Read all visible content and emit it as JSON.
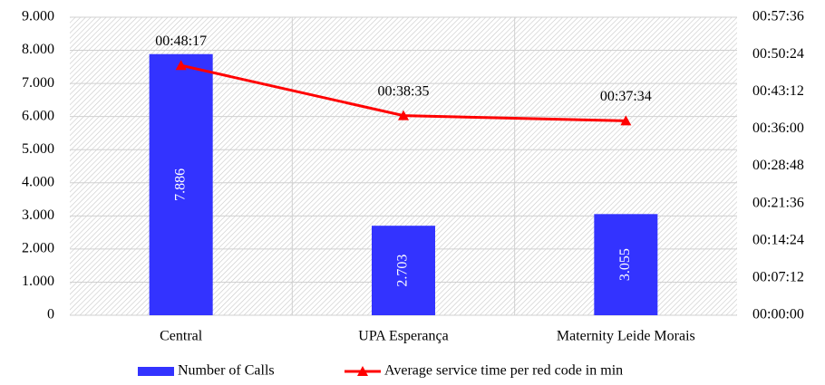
{
  "chart_data": {
    "type": "bar_line",
    "categories": [
      "Central",
      "UPA Esperança",
      "Maternity Leide Morais"
    ],
    "series": [
      {
        "name": "Number of Calls",
        "type": "bar",
        "color": "#3333ff",
        "values": [
          7886,
          2703,
          3055
        ],
        "value_labels": [
          "7.886",
          "2.703",
          "3.055"
        ]
      },
      {
        "name": "Average service time per red code in min",
        "type": "line",
        "axis": "y2",
        "color": "#ff0000",
        "marker": "triangle",
        "values": [
          2897,
          2315,
          2254
        ],
        "value_labels": [
          "00:48:17",
          "00:38:35",
          "00:37:34"
        ]
      }
    ],
    "ylim": [
      0,
      9000
    ],
    "yticks": [
      0,
      {
        "value": 1000,
        "label": "1.000"
      },
      {
        "value": 2000,
        "label": "2.000"
      },
      {
        "value": 3000,
        "label": "3.000"
      },
      {
        "value": 4000,
        "label": "4.000"
      },
      {
        "value": 5000,
        "label": "5.000"
      },
      {
        "value": 6000,
        "label": "6.000"
      },
      {
        "value": 7000,
        "label": "7.000"
      },
      {
        "value": 8000,
        "label": "8.000"
      },
      {
        "value": 9000,
        "label": "9.000"
      }
    ],
    "y2lim": [
      0,
      3456
    ],
    "y2ticks": [
      {
        "value": 0,
        "label": "00:00:00"
      },
      {
        "value": 432,
        "label": "00:07:12"
      },
      {
        "value": 864,
        "label": "00:14:24"
      },
      {
        "value": 1296,
        "label": "00:21:36"
      },
      {
        "value": 1728,
        "label": "00:28:48"
      },
      {
        "value": 2160,
        "label": "00:36:00"
      },
      {
        "value": 2592,
        "label": "00:43:12"
      },
      {
        "value": 3024,
        "label": "00:50:24"
      },
      {
        "value": 3456,
        "label": "00:57:36"
      }
    ],
    "grid": true,
    "legend": "bottom"
  }
}
